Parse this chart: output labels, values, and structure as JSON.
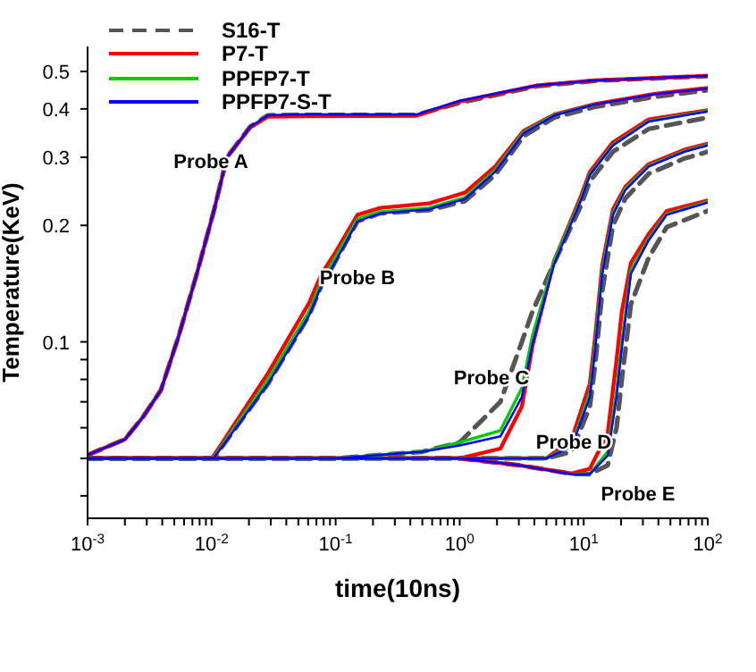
{
  "chart_data": {
    "type": "line",
    "xlabel": "time(10ns)",
    "ylabel": "Temperature(KeV)",
    "log": "xy",
    "legend": "top left",
    "xlim": [
      0.001,
      100
    ],
    "ylim": [
      0.035,
      0.58
    ],
    "xticks": [
      {
        "value": 0.001,
        "label": "10$^{-3}$"
      },
      {
        "value": 0.002,
        "label": null
      },
      {
        "value": 0.003,
        "label": null
      },
      {
        "value": 0.004,
        "label": null
      },
      {
        "value": 0.005,
        "label": null
      },
      {
        "value": 0.006,
        "label": null
      },
      {
        "value": 0.007,
        "label": null
      },
      {
        "value": 0.008,
        "label": null
      },
      {
        "value": 0.009,
        "label": null
      },
      {
        "value": 0.01,
        "label": "10$^{-2}$"
      },
      {
        "value": 0.02,
        "label": null
      },
      {
        "value": 0.03,
        "label": null
      },
      {
        "value": 0.04,
        "label": null
      },
      {
        "value": 0.05,
        "label": null
      },
      {
        "value": 0.06,
        "label": null
      },
      {
        "value": 0.07,
        "label": null
      },
      {
        "value": 0.08,
        "label": null
      },
      {
        "value": 0.09,
        "label": null
      },
      {
        "value": 0.1,
        "label": "10$^{-1}$"
      },
      {
        "value": 0.2,
        "label": null
      },
      {
        "value": 0.3,
        "label": null
      },
      {
        "value": 0.4,
        "label": null
      },
      {
        "value": 0.5,
        "label": null
      },
      {
        "value": 0.6,
        "label": null
      },
      {
        "value": 0.7,
        "label": null
      },
      {
        "value": 0.8,
        "label": null
      },
      {
        "value": 0.9,
        "label": null
      },
      {
        "value": 1,
        "label": "10$^{0}$"
      },
      {
        "value": 2,
        "label": null
      },
      {
        "value": 3,
        "label": null
      },
      {
        "value": 4,
        "label": null
      },
      {
        "value": 5,
        "label": null
      },
      {
        "value": 6,
        "label": null
      },
      {
        "value": 7,
        "label": null
      },
      {
        "value": 8,
        "label": null
      },
      {
        "value": 9,
        "label": null
      },
      {
        "value": 10,
        "label": "10$^{1}$"
      },
      {
        "value": 20,
        "label": null
      },
      {
        "value": 30,
        "label": null
      },
      {
        "value": 40,
        "label": null
      },
      {
        "value": 50,
        "label": null
      },
      {
        "value": 60,
        "label": null
      },
      {
        "value": 70,
        "label": null
      },
      {
        "value": 80,
        "label": null
      },
      {
        "value": 90,
        "label": null
      },
      {
        "value": 100,
        "label": "10$^{2}$"
      }
    ],
    "yticks": [
      {
        "value": 0.04,
        "label": null
      },
      {
        "value": 0.05,
        "label": null
      },
      {
        "value": 0.06,
        "label": null
      },
      {
        "value": 0.07,
        "label": null
      },
      {
        "value": 0.08,
        "label": null
      },
      {
        "value": 0.09,
        "label": null
      },
      0.1,
      0.2,
      0.3,
      0.4,
      0.5
    ],
    "annotations": [
      "Probe A",
      "Probe B",
      "Probe C",
      "Probe D",
      "Probe E"
    ],
    "series": [
      {
        "name": "S16-T",
        "color": "#555555",
        "line_style": "dashed",
        "x": [
          0.001,
          0.002,
          0.0028,
          0.0039,
          0.0054,
          0.0076,
          0.0105,
          0.0133,
          0.0205,
          0.0285,
          0.05,
          0.45,
          1,
          4.2,
          12.4,
          100
        ],
        "values": [
          0.051,
          0.056,
          0.064,
          0.075,
          0.103,
          0.15,
          0.22,
          0.3,
          0.36,
          0.385,
          0.386,
          0.386,
          0.415,
          0.458,
          0.473,
          0.486
        ]
      },
      {
        "color": "#555555",
        "line_style": "dashed",
        "x": [
          0.001,
          0.01,
          0.0105,
          0.0285,
          0.061,
          0.077,
          0.097,
          0.15,
          0.23,
          0.565,
          1.1,
          1.93,
          3.28,
          5.8,
          12.4,
          38,
          100
        ],
        "values": [
          0.05,
          0.05,
          0.0503,
          0.078,
          0.117,
          0.14,
          0.159,
          0.205,
          0.215,
          0.219,
          0.231,
          0.27,
          0.34,
          0.38,
          0.405,
          0.43,
          0.447
        ]
      },
      {
        "color": "#555555",
        "line_style": "dashed",
        "x": [
          0.001,
          0.1,
          0.5,
          1,
          2.13,
          3.17,
          3.87,
          5.77,
          9.5,
          11.2,
          17.2,
          33.4,
          100
        ],
        "values": [
          0.05,
          0.05,
          0.052,
          0.055,
          0.07,
          0.1,
          0.12,
          0.16,
          0.225,
          0.26,
          0.31,
          0.355,
          0.38
        ]
      },
      {
        "color": "#555555",
        "line_style": "dashed",
        "x": [
          0.001,
          1,
          5,
          8,
          11.2,
          12.4,
          14.1,
          17.2,
          21.7,
          33.4,
          65,
          100
        ],
        "values": [
          0.05,
          0.05,
          0.05,
          0.052,
          0.068,
          0.088,
          0.135,
          0.2,
          0.235,
          0.272,
          0.298,
          0.31
        ]
      },
      {
        "color": "#555555",
        "line_style": "dashed",
        "x": [
          0.001,
          1,
          3,
          8,
          11.2,
          15.6,
          18.4,
          20.3,
          24,
          33.4,
          46.7,
          100
        ],
        "values": [
          0.05,
          0.05,
          0.048,
          0.0456,
          0.0455,
          0.048,
          0.06,
          0.08,
          0.125,
          0.165,
          0.198,
          0.218
        ]
      },
      {
        "name": "P7-T",
        "color": "#ff0000",
        "line_style": "solid",
        "x": [
          0.001,
          0.002,
          0.0028,
          0.0039,
          0.0054,
          0.0076,
          0.0105,
          0.0133,
          0.0205,
          0.0285,
          0.05,
          0.45,
          1,
          4.2,
          12.4,
          100
        ],
        "values": [
          0.051,
          0.056,
          0.064,
          0.075,
          0.103,
          0.15,
          0.22,
          0.3,
          0.358,
          0.382,
          0.383,
          0.384,
          0.418,
          0.46,
          0.474,
          0.487
        ]
      },
      {
        "color": "#ff0000",
        "line_style": "solid",
        "x": [
          0.001,
          0.01,
          0.0105,
          0.0285,
          0.061,
          0.077,
          0.097,
          0.15,
          0.23,
          0.565,
          1.1,
          1.93,
          3.28,
          5.8,
          12.4,
          38,
          100
        ],
        "values": [
          0.05,
          0.05,
          0.051,
          0.083,
          0.126,
          0.15,
          0.168,
          0.213,
          0.222,
          0.228,
          0.243,
          0.284,
          0.351,
          0.387,
          0.412,
          0.438,
          0.453
        ]
      },
      {
        "color": "#ff0000",
        "line_style": "solid",
        "x": [
          0.001,
          0.1,
          0.5,
          1,
          2.13,
          3.17,
          3.87,
          5.77,
          9.5,
          11.2,
          17.2,
          33.4,
          100
        ],
        "values": [
          0.05,
          0.05,
          0.05,
          0.05,
          0.053,
          0.068,
          0.098,
          0.162,
          0.238,
          0.275,
          0.328,
          0.376,
          0.397
        ]
      },
      {
        "color": "#ff0000",
        "line_style": "solid",
        "x": [
          0.001,
          1,
          5,
          8,
          11.2,
          12.4,
          14.1,
          17.2,
          21.7,
          33.4,
          65,
          100
        ],
        "values": [
          0.05,
          0.05,
          0.05,
          0.056,
          0.078,
          0.104,
          0.158,
          0.22,
          0.252,
          0.288,
          0.314,
          0.325
        ]
      },
      {
        "color": "#ff0000",
        "line_style": "solid",
        "x": [
          0.001,
          1,
          3,
          8,
          11.2,
          15.6,
          18.4,
          20.3,
          24,
          33.4,
          46.7,
          100
        ],
        "values": [
          0.05,
          0.05,
          0.048,
          0.0457,
          0.047,
          0.058,
          0.09,
          0.12,
          0.16,
          0.19,
          0.218,
          0.232
        ]
      },
      {
        "name": "PPFP7-T",
        "color": "#00cc00",
        "line_style": "solid",
        "x": [
          0.001,
          0.01,
          0.0105,
          0.0285,
          0.061,
          0.077,
          0.097,
          0.15,
          0.23,
          0.565,
          1.1,
          1.93,
          3.28,
          5.8,
          12.4
        ],
        "values": [
          0.05,
          0.05,
          0.0505,
          0.08,
          0.12,
          0.144,
          0.163,
          0.208,
          0.217,
          0.222,
          0.236,
          0.278,
          0.348,
          0.386,
          0.411
        ]
      },
      {
        "color": "#00cc00",
        "line_style": "solid",
        "x": [
          0.001,
          0.1,
          0.5,
          1,
          2.13,
          3.17,
          3.87,
          5.77,
          9.5,
          11.2,
          17.2,
          33.4,
          100
        ],
        "values": [
          0.05,
          0.05,
          0.052,
          0.055,
          0.059,
          0.076,
          0.104,
          0.162,
          0.234,
          0.271,
          0.323,
          0.372,
          0.395
        ]
      },
      {
        "color": "#00cc00",
        "line_style": "solid",
        "x": [
          0.001,
          1,
          5,
          8,
          11.2,
          12.4,
          14.1,
          17.2,
          21.7,
          33.4,
          65,
          100
        ],
        "values": [
          0.05,
          0.05,
          0.05,
          0.054,
          0.074,
          0.099,
          0.153,
          0.215,
          0.249,
          0.285,
          0.311,
          0.323
        ]
      },
      {
        "color": "#00cc00",
        "line_style": "solid",
        "x": [
          8,
          11.2,
          15.6,
          18.4,
          20.3,
          24,
          33.4,
          46.7,
          100
        ],
        "values": [
          0.0455,
          0.0456,
          0.052,
          0.075,
          0.1,
          0.153,
          0.185,
          0.214,
          0.23
        ]
      },
      {
        "name": "PPFP7-S-T",
        "color": "#0000ff",
        "line_style": "solid",
        "x": [
          0.001,
          0.002,
          0.0028,
          0.0039,
          0.0054,
          0.0076,
          0.0105,
          0.0133,
          0.0205,
          0.0285,
          0.05,
          0.45,
          1,
          4.2,
          12.4,
          100
        ],
        "values": [
          0.051,
          0.056,
          0.064,
          0.075,
          0.103,
          0.15,
          0.22,
          0.3,
          0.36,
          0.385,
          0.387,
          0.387,
          0.42,
          0.46,
          0.474,
          0.487
        ]
      },
      {
        "color": "#0000ff",
        "line_style": "solid",
        "x": [
          0.001,
          0.01,
          0.0105,
          0.0285,
          0.061,
          0.077,
          0.097,
          0.15,
          0.23,
          0.565,
          1.1,
          1.93,
          3.28,
          5.8,
          12.4,
          38,
          100
        ],
        "values": [
          0.05,
          0.05,
          0.0503,
          0.078,
          0.117,
          0.14,
          0.159,
          0.205,
          0.215,
          0.22,
          0.234,
          0.275,
          0.346,
          0.385,
          0.411,
          0.437,
          0.452
        ]
      },
      {
        "color": "#0000ff",
        "line_style": "solid",
        "x": [
          0.001,
          0.1,
          0.5,
          1,
          2.13,
          3.17,
          3.87,
          5.77,
          9.5,
          11.2,
          17.2,
          33.4,
          100
        ],
        "values": [
          0.05,
          0.05,
          0.052,
          0.054,
          0.057,
          0.072,
          0.099,
          0.159,
          0.232,
          0.27,
          0.322,
          0.371,
          0.394
        ]
      },
      {
        "color": "#0000ff",
        "line_style": "solid",
        "x": [
          0.001,
          1,
          5,
          8,
          11.2,
          12.4,
          14.1,
          17.2,
          21.7,
          33.4,
          65,
          100
        ],
        "values": [
          0.05,
          0.05,
          0.05,
          0.0536,
          0.072,
          0.0966,
          0.15,
          0.213,
          0.247,
          0.284,
          0.31,
          0.322
        ]
      },
      {
        "color": "#0000ff",
        "line_style": "solid",
        "x": [
          0.001,
          1,
          3,
          8,
          11.2,
          15.6,
          18.4,
          20.3,
          24,
          33.4,
          46.7,
          100
        ],
        "values": [
          0.05,
          0.05,
          0.048,
          0.0455,
          0.0455,
          0.0508,
          0.072,
          0.0966,
          0.15,
          0.183,
          0.213,
          0.229
        ]
      }
    ]
  }
}
